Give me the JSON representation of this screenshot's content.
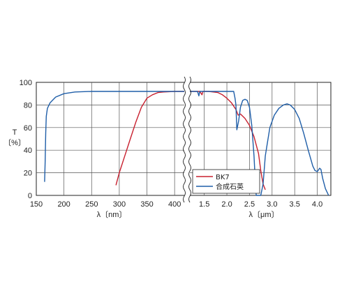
{
  "chart_data": {
    "type": "line",
    "title": "",
    "y_axis": {
      "label_top": "T",
      "label_unit": "〔%〕",
      "range": [
        0,
        100
      ],
      "ticks": [
        "0",
        "20",
        "40",
        "60",
        "80",
        "100"
      ],
      "tick_values": [
        0,
        20,
        40,
        60,
        80,
        100
      ]
    },
    "x_axis_left": {
      "label": "λ〔nm〕",
      "range": [
        150,
        420
      ],
      "ticks": [
        "150",
        "200",
        "250",
        "300",
        "350",
        "400"
      ],
      "tick_values": [
        150,
        200,
        250,
        300,
        350,
        400
      ]
    },
    "x_axis_right": {
      "label": "λ〔μm〕",
      "range": [
        1.15,
        4.3
      ],
      "ticks": [
        "1.5",
        "2.0",
        "2.5",
        "3.0",
        "3.5",
        "4.0"
      ],
      "tick_values": [
        1.5,
        2.0,
        2.5,
        3.0,
        3.5,
        4.0
      ]
    },
    "grid": true,
    "axis_break": true,
    "legend_position": "bottom-center-right",
    "series": [
      {
        "name": "BK7",
        "color": "#c8202f",
        "left_points": [
          [
            294,
            9
          ],
          [
            300,
            20
          ],
          [
            310,
            35
          ],
          [
            320,
            50
          ],
          [
            330,
            65
          ],
          [
            340,
            78
          ],
          [
            350,
            86
          ],
          [
            360,
            89
          ],
          [
            370,
            91
          ],
          [
            380,
            91.5
          ],
          [
            400,
            92
          ],
          [
            420,
            92
          ]
        ],
        "right_points": [
          [
            1.15,
            92
          ],
          [
            1.4,
            92
          ],
          [
            1.45,
            89
          ],
          [
            1.47,
            92
          ],
          [
            1.6,
            92
          ],
          [
            1.8,
            91
          ],
          [
            1.9,
            89
          ],
          [
            2.0,
            86
          ],
          [
            2.1,
            82
          ],
          [
            2.2,
            76
          ],
          [
            2.25,
            71
          ],
          [
            2.3,
            72
          ],
          [
            2.4,
            68
          ],
          [
            2.5,
            62
          ],
          [
            2.6,
            52
          ],
          [
            2.7,
            37
          ],
          [
            2.75,
            22
          ],
          [
            2.8,
            10
          ],
          [
            2.85,
            5
          ]
        ]
      },
      {
        "name": "合成石英",
        "color": "#1f5ea8",
        "left_points": [
          [
            165,
            12
          ],
          [
            166,
            30
          ],
          [
            167,
            55
          ],
          [
            168,
            70
          ],
          [
            170,
            77
          ],
          [
            175,
            82
          ],
          [
            185,
            87
          ],
          [
            200,
            90
          ],
          [
            220,
            91.5
          ],
          [
            250,
            92
          ],
          [
            300,
            92
          ],
          [
            350,
            92
          ],
          [
            400,
            92
          ],
          [
            420,
            92
          ]
        ],
        "right_points": [
          [
            1.15,
            92
          ],
          [
            1.35,
            92
          ],
          [
            1.38,
            88
          ],
          [
            1.4,
            92
          ],
          [
            1.6,
            92
          ],
          [
            2.0,
            92
          ],
          [
            2.15,
            92
          ],
          [
            2.18,
            86
          ],
          [
            2.2,
            80
          ],
          [
            2.22,
            58
          ],
          [
            2.26,
            66
          ],
          [
            2.3,
            78
          ],
          [
            2.35,
            84
          ],
          [
            2.4,
            85
          ],
          [
            2.45,
            84
          ],
          [
            2.5,
            78
          ],
          [
            2.55,
            62
          ],
          [
            2.6,
            35
          ],
          [
            2.63,
            12
          ],
          [
            2.65,
            0
          ],
          [
            2.75,
            0
          ],
          [
            2.8,
            10
          ],
          [
            2.85,
            35
          ],
          [
            2.95,
            60
          ],
          [
            3.05,
            71
          ],
          [
            3.15,
            77
          ],
          [
            3.25,
            80
          ],
          [
            3.33,
            81
          ],
          [
            3.4,
            80
          ],
          [
            3.5,
            76
          ],
          [
            3.6,
            68
          ],
          [
            3.7,
            55
          ],
          [
            3.8,
            40
          ],
          [
            3.9,
            26
          ],
          [
            3.95,
            22
          ],
          [
            4.0,
            21
          ],
          [
            4.05,
            24
          ],
          [
            4.08,
            23
          ],
          [
            4.12,
            15
          ],
          [
            4.18,
            6
          ],
          [
            4.25,
            0
          ]
        ]
      }
    ],
    "legend": [
      "BK7",
      "合成石英"
    ]
  }
}
